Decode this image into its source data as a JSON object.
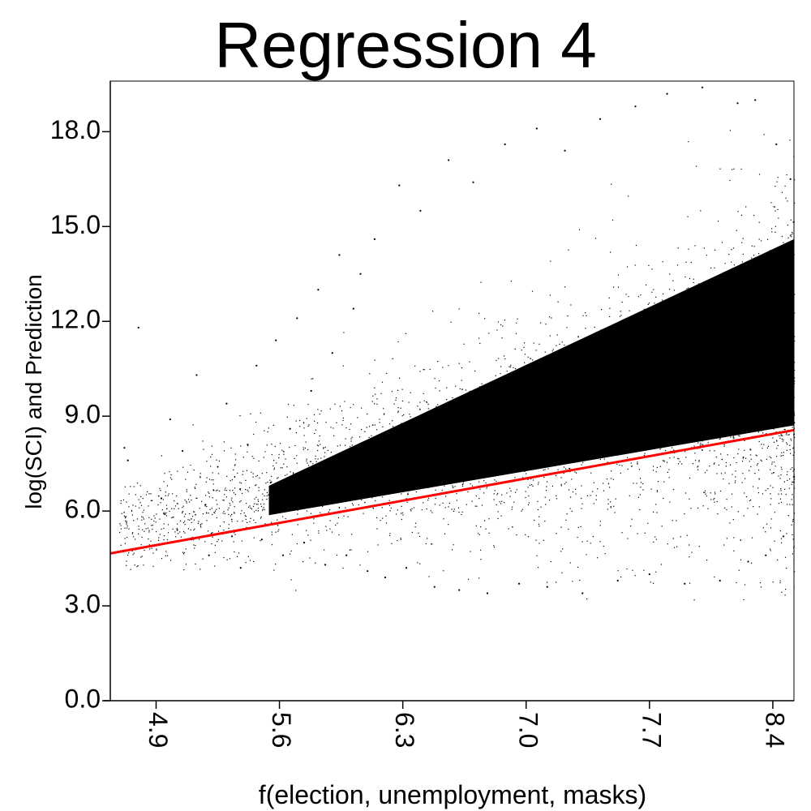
{
  "chart_data": {
    "type": "scatter",
    "title": "Regression 4",
    "xlabel": "f(election, unemployment, masks)",
    "ylabel": "log(SCI) and Prediction",
    "xlim": [
      4.64,
      8.52
    ],
    "ylim": [
      0.0,
      19.6
    ],
    "x_ticks": [
      4.9,
      5.6,
      6.3,
      7.0,
      7.7,
      8.4
    ],
    "x_tick_labels": [
      "4.9",
      "5.6",
      "6.3",
      "7.0",
      "7.7",
      "8.4"
    ],
    "y_ticks": [
      0.0,
      3.0,
      6.0,
      9.0,
      12.0,
      15.0,
      18.0
    ],
    "y_tick_labels": [
      "0.0",
      "3.0",
      "6.0",
      "9.0",
      "12.0",
      "15.0",
      "18.0"
    ],
    "grid": false,
    "legend": "none",
    "series": [
      {
        "kind": "scatter",
        "color": "#000000",
        "points": [
          [
            4.72,
            8.0
          ],
          [
            4.74,
            7.6
          ],
          [
            4.8,
            11.8
          ],
          [
            4.93,
            6.4
          ],
          [
            4.95,
            5.9
          ],
          [
            4.98,
            8.9
          ],
          [
            5.02,
            5.4
          ],
          [
            5.05,
            7.9
          ],
          [
            5.1,
            5.1
          ],
          [
            5.13,
            10.3
          ],
          [
            5.18,
            6.2
          ],
          [
            5.2,
            4.6
          ],
          [
            5.25,
            7.4
          ],
          [
            5.3,
            9.4
          ],
          [
            5.33,
            5.2
          ],
          [
            5.38,
            4.2
          ],
          [
            5.42,
            8.1
          ],
          [
            5.47,
            10.6
          ],
          [
            5.5,
            5.1
          ],
          [
            5.55,
            6.9
          ],
          [
            5.58,
            11.4
          ],
          [
            5.62,
            4.6
          ],
          [
            5.66,
            8.6
          ],
          [
            5.7,
            12.1
          ],
          [
            5.74,
            5.0
          ],
          [
            5.78,
            9.8
          ],
          [
            5.82,
            13.0
          ],
          [
            5.86,
            4.3
          ],
          [
            5.9,
            11.0
          ],
          [
            5.94,
            14.1
          ],
          [
            5.98,
            4.6
          ],
          [
            6.02,
            12.4
          ],
          [
            6.06,
            13.5
          ],
          [
            6.1,
            4.1
          ],
          [
            6.14,
            14.6
          ],
          [
            6.2,
            3.9
          ],
          [
            6.28,
            16.3
          ],
          [
            6.32,
            4.2
          ],
          [
            6.4,
            15.5
          ],
          [
            6.48,
            3.6
          ],
          [
            6.56,
            17.1
          ],
          [
            6.62,
            3.5
          ],
          [
            6.7,
            16.4
          ],
          [
            6.78,
            3.4
          ],
          [
            6.88,
            17.6
          ],
          [
            6.96,
            3.7
          ],
          [
            7.06,
            18.1
          ],
          [
            7.12,
            3.6
          ],
          [
            7.22,
            17.4
          ],
          [
            7.32,
            3.4
          ],
          [
            7.42,
            18.4
          ],
          [
            7.52,
            3.8
          ],
          [
            7.62,
            18.8
          ],
          [
            7.7,
            4.0
          ],
          [
            7.8,
            19.2
          ],
          [
            7.9,
            3.7
          ],
          [
            8.0,
            19.4
          ],
          [
            8.1,
            3.8
          ],
          [
            8.2,
            18.9
          ],
          [
            8.26,
            4.4
          ],
          [
            8.3,
            19.0
          ],
          [
            8.36,
            4.6
          ],
          [
            8.42,
            17.6
          ],
          [
            8.46,
            5.2
          ],
          [
            8.5,
            16.5
          ]
        ]
      },
      {
        "kind": "line",
        "color": "#ff0000",
        "points": [
          [
            4.64,
            4.66
          ],
          [
            8.52,
            8.56
          ]
        ]
      }
    ]
  }
}
